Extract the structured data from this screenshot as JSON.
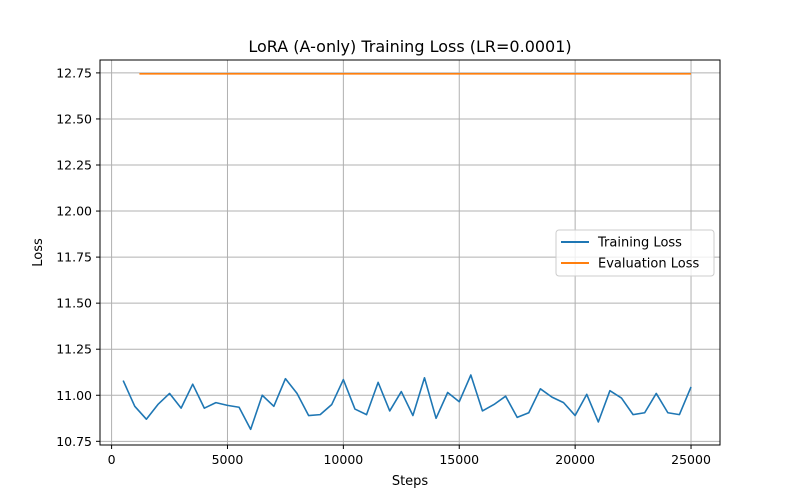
{
  "chart_data": {
    "type": "line",
    "title": "LoRA (A-only) Training Loss (LR=0.0001)",
    "xlabel": "Steps",
    "ylabel": "Loss",
    "xlim": [
      -500,
      26250
    ],
    "ylim": [
      10.73,
      12.82
    ],
    "xticks": [
      0,
      5000,
      10000,
      15000,
      20000,
      25000
    ],
    "xtick_labels": [
      "0",
      "5000",
      "10000",
      "15000",
      "20000",
      "25000"
    ],
    "yticks": [
      10.75,
      11.0,
      11.25,
      11.5,
      11.75,
      12.0,
      12.25,
      12.5,
      12.75
    ],
    "ytick_labels": [
      "10.75",
      "11.00",
      "11.25",
      "11.50",
      "11.75",
      "12.00",
      "12.25",
      "12.50",
      "12.75"
    ],
    "grid": true,
    "legend_position": "center-right",
    "series": [
      {
        "name": "Training Loss",
        "color": "#1f77b4",
        "x": [
          500,
          1000,
          1500,
          2000,
          2500,
          3000,
          3500,
          4000,
          4500,
          5000,
          5500,
          6000,
          6500,
          7000,
          7500,
          8000,
          8500,
          9000,
          9500,
          10000,
          10500,
          11000,
          11500,
          12000,
          12500,
          13000,
          13500,
          14000,
          14500,
          15000,
          15500,
          16000,
          16500,
          17000,
          17500,
          18000,
          18500,
          19000,
          19500,
          20000,
          20500,
          21000,
          21500,
          22000,
          22500,
          23000,
          23500,
          24000,
          24500,
          25000
        ],
        "y": [
          11.08,
          10.94,
          10.87,
          10.95,
          11.01,
          10.93,
          11.06,
          10.93,
          10.96,
          10.945,
          10.935,
          10.815,
          11.0,
          10.94,
          11.09,
          11.01,
          10.89,
          10.895,
          10.95,
          11.085,
          10.925,
          10.895,
          11.07,
          10.915,
          11.02,
          10.89,
          11.095,
          10.875,
          11.015,
          10.965,
          11.11,
          10.915,
          10.95,
          10.995,
          10.88,
          10.905,
          11.035,
          10.99,
          10.96,
          10.89,
          11.005,
          10.855,
          11.025,
          10.985,
          10.895,
          10.905,
          11.01,
          10.905,
          10.895,
          11.045
        ]
      },
      {
        "name": "Evaluation Loss",
        "color": "#ff7f0e",
        "x": [
          1200,
          25000
        ],
        "y": [
          12.745,
          12.745
        ]
      }
    ]
  }
}
